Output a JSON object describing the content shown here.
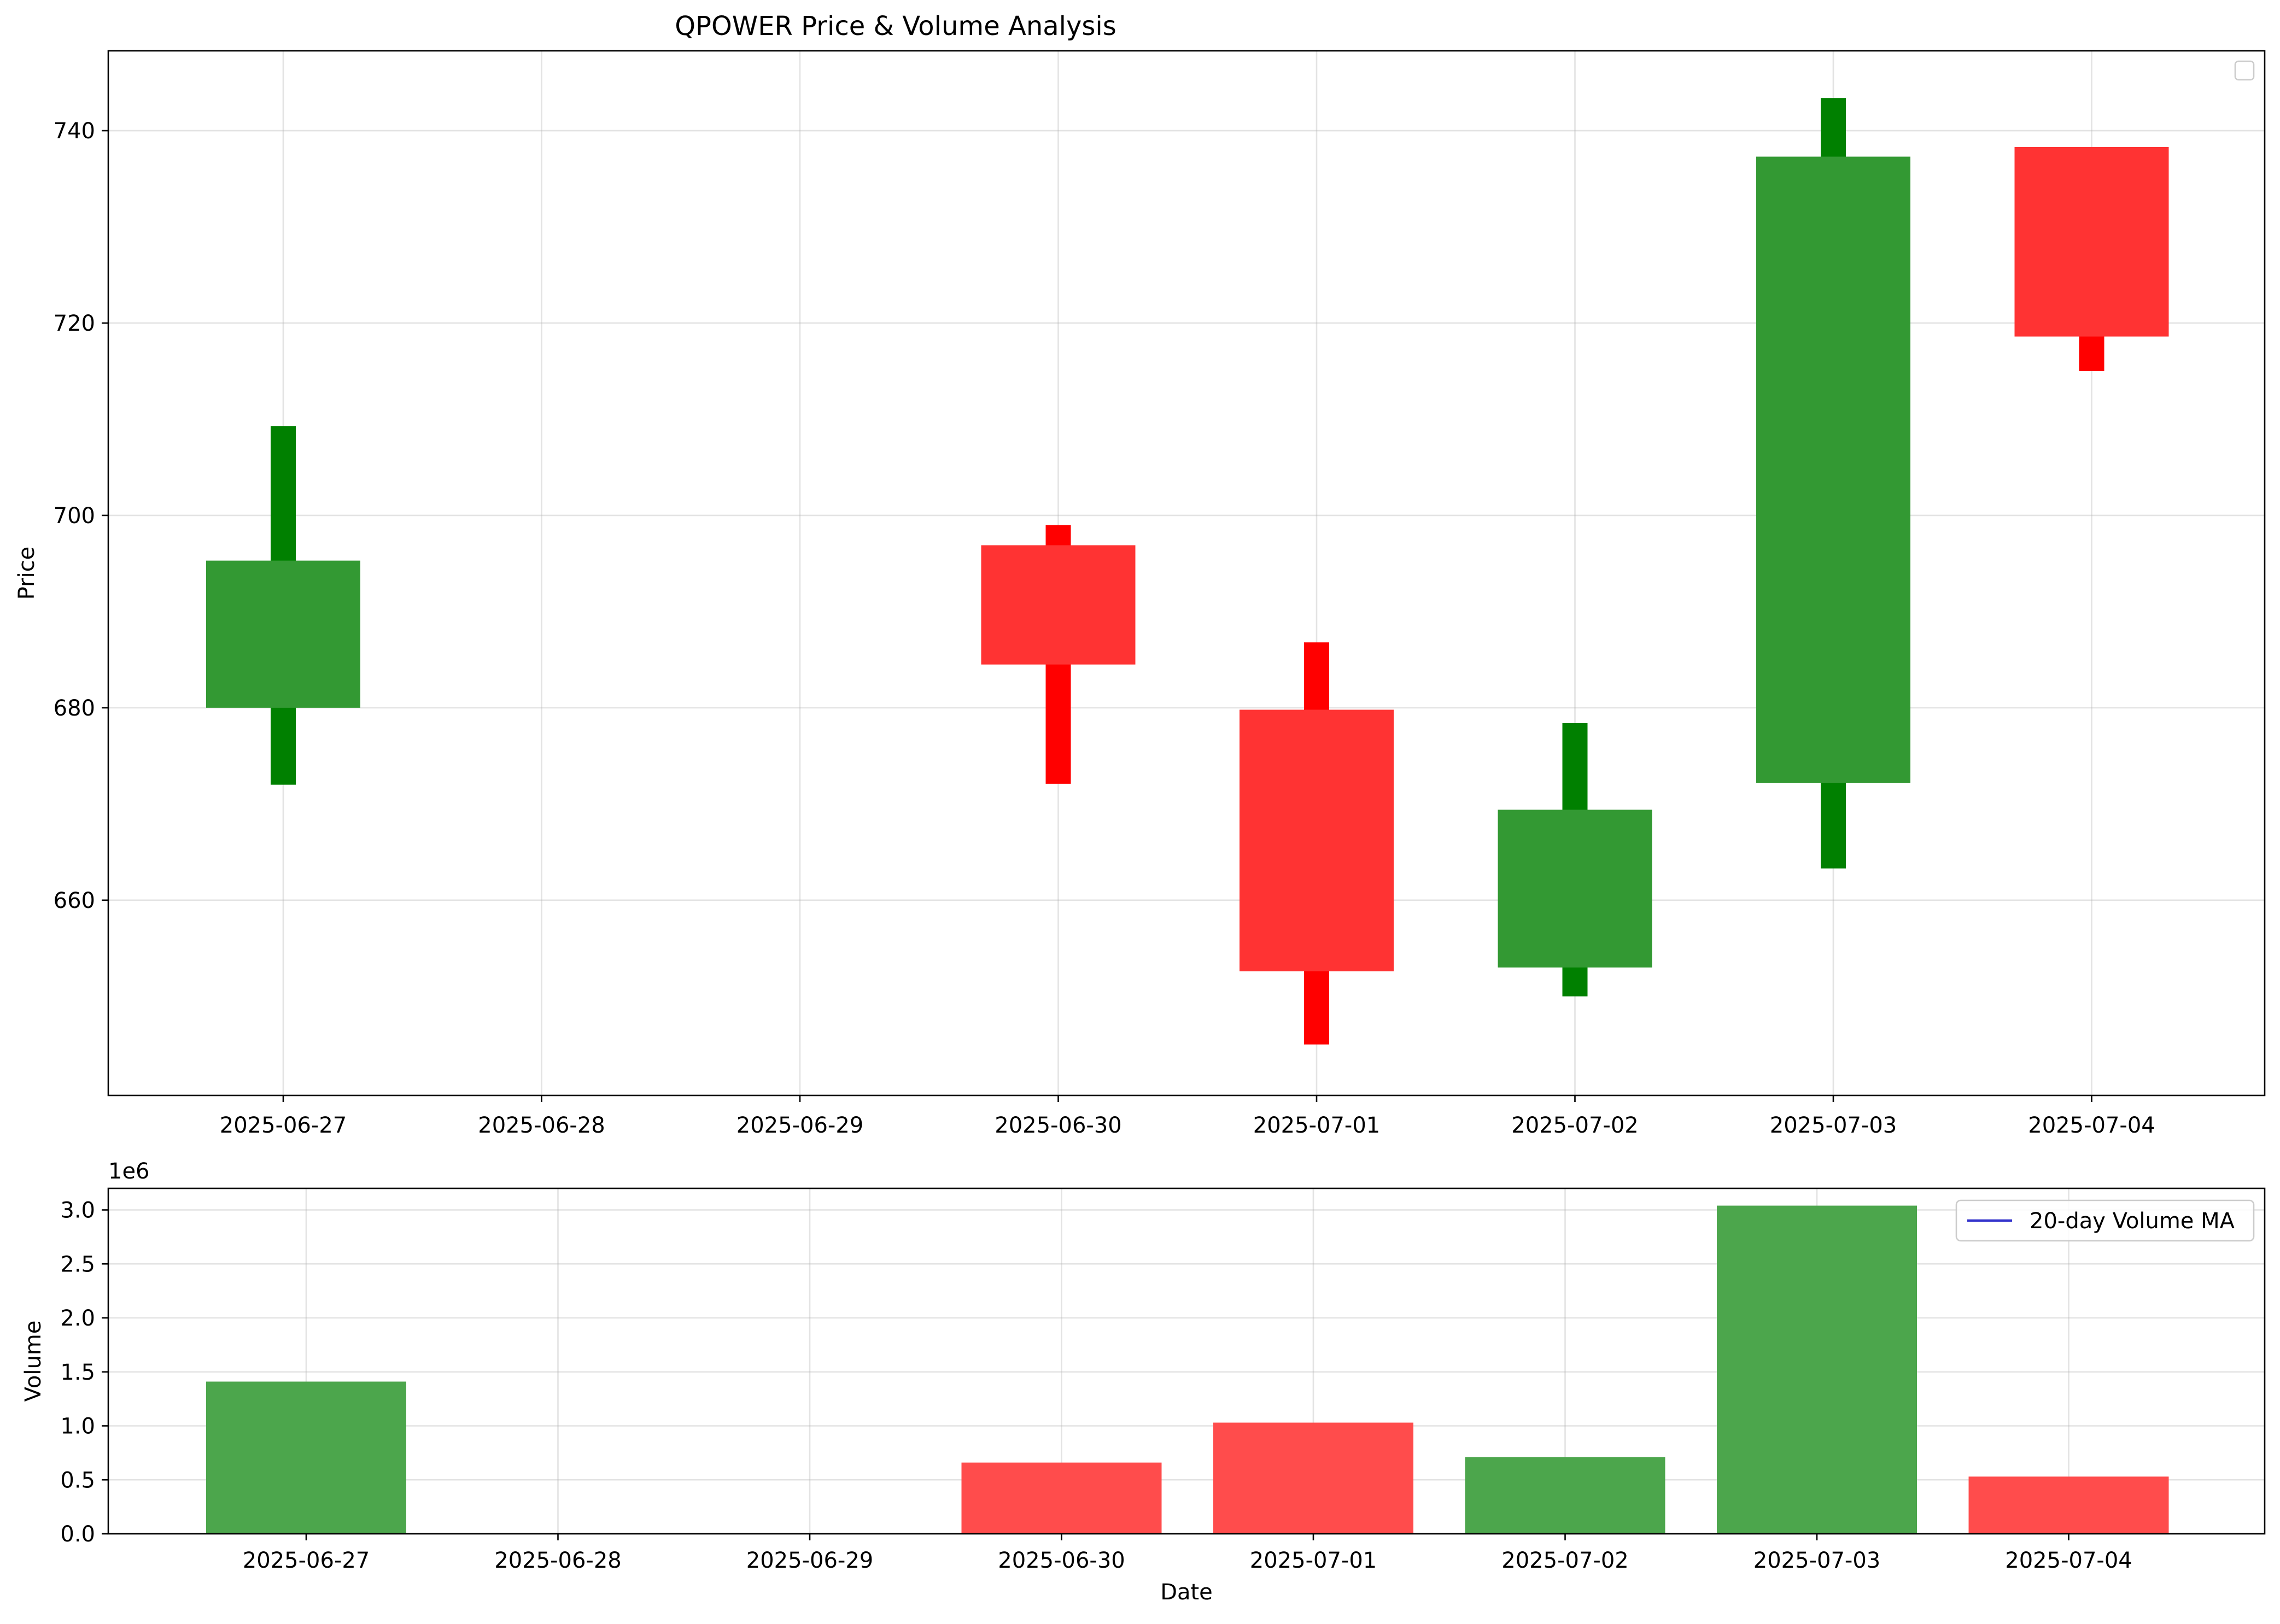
{
  "chart_data": [
    {
      "type": "candlestick",
      "title": "QPOWER Price & Volume Analysis",
      "xlabel": "",
      "ylabel": "Price",
      "ylim": [
        639.7,
        748.3
      ],
      "yticks": [
        660,
        680,
        700,
        720,
        740
      ],
      "categories": [
        "2025-06-27",
        "2025-06-28",
        "2025-06-29",
        "2025-06-30",
        "2025-07-01",
        "2025-07-02",
        "2025-07-03",
        "2025-07-04"
      ],
      "candles": [
        {
          "date": "2025-06-27",
          "open": 680.0,
          "high": 709.3,
          "low": 672.0,
          "close": 695.3,
          "direction": "up"
        },
        {
          "date": "2025-06-30",
          "open": 696.9,
          "high": 699.0,
          "low": 672.1,
          "close": 684.5,
          "direction": "down"
        },
        {
          "date": "2025-07-01",
          "open": 679.8,
          "high": 686.8,
          "low": 645.0,
          "close": 652.6,
          "direction": "down"
        },
        {
          "date": "2025-07-02",
          "open": 653.0,
          "high": 678.4,
          "low": 650.0,
          "close": 669.4,
          "direction": "up"
        },
        {
          "date": "2025-07-03",
          "open": 672.2,
          "high": 743.4,
          "low": 663.3,
          "close": 737.3,
          "direction": "up"
        },
        {
          "date": "2025-07-04",
          "open": 738.3,
          "high": 738.3,
          "low": 715.0,
          "close": 718.6,
          "direction": "down"
        }
      ],
      "grid": true,
      "legend": {
        "placement": "upper right",
        "entries": []
      },
      "colors": {
        "up_body": "#339933",
        "up_wick": "#008000",
        "down_body": "#ff3333",
        "down_wick": "#ff0000"
      }
    },
    {
      "type": "bar",
      "xlabel": "Date",
      "ylabel": "Volume",
      "offset_label": "1e6",
      "ylim": [
        0,
        3.2
      ],
      "yticks": [
        "0.0",
        "0.5",
        "1.0",
        "1.5",
        "2.0",
        "2.5",
        "3.0"
      ],
      "categories": [
        "2025-06-27",
        "2025-06-28",
        "2025-06-29",
        "2025-06-30",
        "2025-07-01",
        "2025-07-02",
        "2025-07-03",
        "2025-07-04"
      ],
      "values": [
        1.41,
        0,
        0,
        0.66,
        1.03,
        0.71,
        3.04,
        0.53
      ],
      "bar_colors": [
        "up",
        null,
        null,
        "down",
        "down",
        "up",
        "up",
        "down"
      ],
      "grid": true,
      "legend": {
        "placement": "upper right",
        "entries": [
          {
            "name": "20-day Volume MA",
            "color": "#3333cc"
          }
        ]
      },
      "colors": {
        "up": "#4ca64c",
        "down": "#ff4c4c"
      }
    }
  ]
}
